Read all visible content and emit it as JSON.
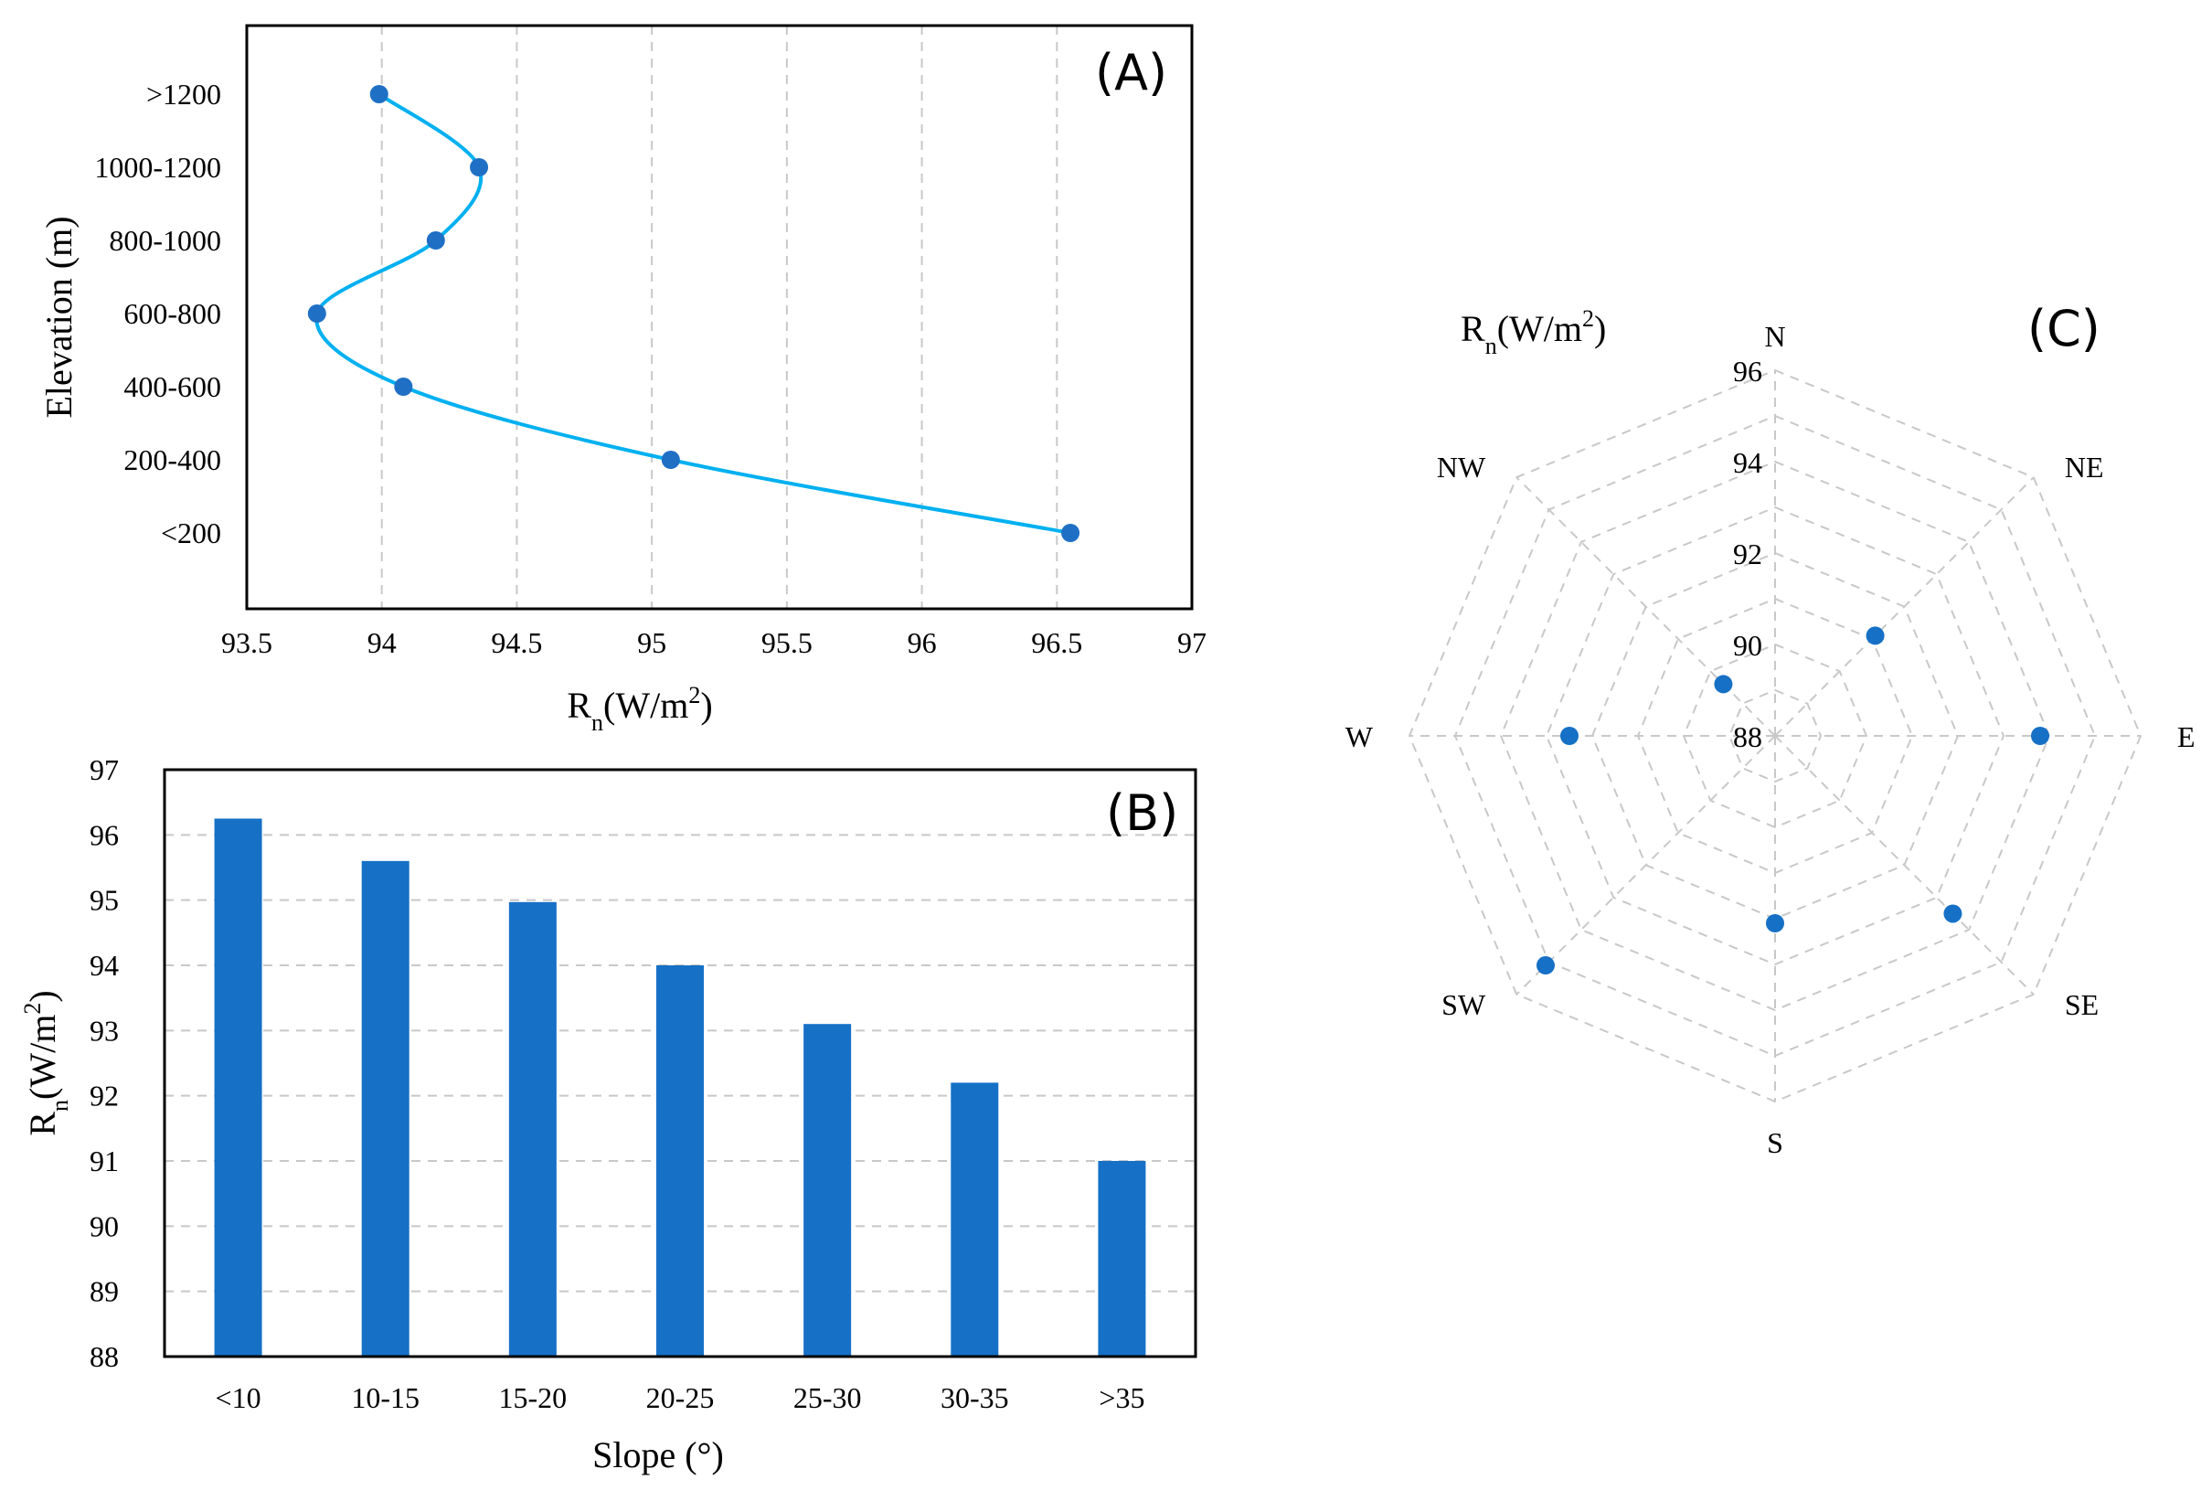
{
  "chart_data": [
    {
      "panel_label": "(A)",
      "type": "line",
      "orientation": "horizontal",
      "title": "",
      "categories": [
        "<200",
        "200-400",
        "400-600",
        "600-800",
        "800-1000",
        "1000-1200",
        ">1200"
      ],
      "values": [
        96.55,
        95.07,
        94.08,
        93.76,
        94.2,
        94.36,
        93.99
      ],
      "xlabel": {
        "main": "R",
        "sub": "n",
        "rest": "(W/m",
        "sup": "2",
        "close": ")"
      },
      "ylabel": "Elevation (m)",
      "xlim": [
        93.5,
        97
      ],
      "xticks": [
        "93.5",
        "94",
        "94.5",
        "95",
        "95.5",
        "96",
        "96.5",
        "97"
      ],
      "grid": "vertical dashed",
      "line_color": "#00b0f0",
      "marker_color": "#1f6fc5"
    },
    {
      "panel_label": "(B)",
      "type": "bar",
      "title": "",
      "categories": [
        "<10",
        "10-15",
        "15-20",
        "20-25",
        "25-30",
        "30-35",
        ">35"
      ],
      "values": [
        96.25,
        95.6,
        94.97,
        94.0,
        93.1,
        92.2,
        91.0
      ],
      "xlabel": "Slope (°)",
      "ylabel": {
        "main": "R",
        "sub": "n",
        "rest": "(W/m",
        "sup": "2",
        "close": ")"
      },
      "ylim": [
        88,
        97
      ],
      "yticks": [
        "88",
        "89",
        "90",
        "91",
        "92",
        "93",
        "94",
        "95",
        "96",
        "97"
      ],
      "grid": "horizontal dashed",
      "bar_color": "#1670c6"
    },
    {
      "panel_label": "(C)",
      "type": "radar",
      "title": "",
      "unit_label": {
        "main": "R",
        "sub": "n",
        "rest": "(W/m",
        "sup": "2",
        "close": ")"
      },
      "directions": [
        "N",
        "NE",
        "E",
        "SE",
        "S",
        "SW",
        "W",
        "NW"
      ],
      "values": [
        null,
        91.1,
        93.8,
        93.5,
        92.1,
        95.1,
        92.5,
        89.6
      ],
      "rlim": [
        88,
        96
      ],
      "rticks": [
        "88",
        "90",
        "92",
        "94",
        "96"
      ],
      "grid": "dashed octagons",
      "marker_color": "#1670c6"
    }
  ]
}
